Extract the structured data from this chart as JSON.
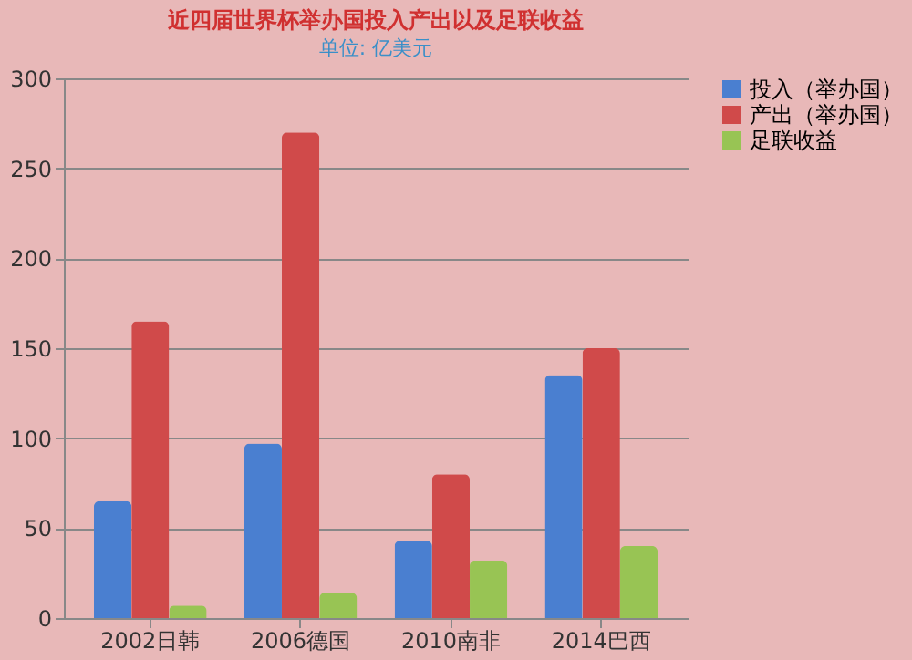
{
  "chart_data": {
    "type": "bar",
    "title": "近四届世界杯举办国投入产出以及足联收益",
    "subtitle": "单位: 亿美元",
    "categories": [
      "2002日韩",
      "2006德国",
      "2010南非",
      "2014巴西"
    ],
    "series": [
      {
        "name": "投入（举办国）",
        "color": "#4a7fd0",
        "values": [
          65,
          97,
          43,
          135
        ]
      },
      {
        "name": "产出（举办国）",
        "color": "#d04a4a",
        "values": [
          165,
          270,
          80,
          150
        ]
      },
      {
        "name": "足联收益",
        "color": "#98c454",
        "values": [
          7,
          14,
          32,
          40
        ]
      }
    ],
    "ylim": [
      0,
      300
    ],
    "yticks": [
      0,
      50,
      100,
      150,
      200,
      250,
      300
    ],
    "grid": "y",
    "legend": "right"
  }
}
